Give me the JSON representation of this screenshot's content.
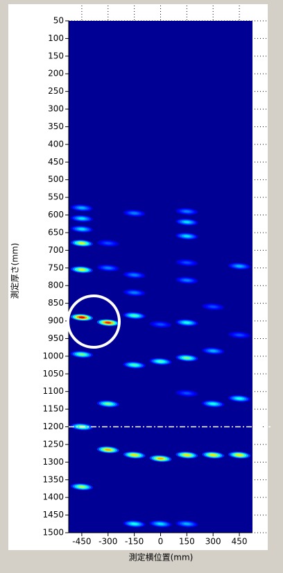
{
  "chart_data": {
    "type": "heatmap",
    "x_label": "測定横位置(mm)",
    "y_label": "測定厚さ(mm)",
    "xlim": [
      -525,
      525
    ],
    "ylim": [
      50,
      1500
    ],
    "y_reversed": true,
    "xticks": [
      -450,
      -300,
      -150,
      0,
      150,
      300,
      450
    ],
    "yticks": [
      50,
      100,
      150,
      200,
      250,
      300,
      350,
      400,
      450,
      500,
      550,
      600,
      650,
      700,
      750,
      800,
      850,
      900,
      950,
      1000,
      1050,
      1100,
      1150,
      1200,
      1250,
      1300,
      1350,
      1400,
      1450,
      1500
    ],
    "grid": true,
    "colormap": "jet",
    "reference_line": 1200,
    "x": [
      -450,
      -450,
      -450,
      -450,
      -450,
      -450,
      -450,
      -450,
      -450,
      -300,
      -300,
      -300,
      -300,
      -300,
      -150,
      -150,
      -150,
      -150,
      -150,
      -150,
      -150,
      0,
      0,
      0,
      0,
      150,
      150,
      150,
      150,
      150,
      150,
      150,
      150,
      150,
      150,
      300,
      300,
      300,
      300,
      450,
      450,
      450,
      450
    ],
    "y": [
      580,
      610,
      640,
      680,
      755,
      890,
      995,
      1200,
      1370,
      680,
      750,
      905,
      1135,
      1265,
      595,
      770,
      820,
      885,
      1025,
      1280,
      1475,
      910,
      1015,
      1290,
      1475,
      590,
      620,
      660,
      735,
      785,
      905,
      1005,
      1105,
      1280,
      1475,
      860,
      985,
      1135,
      1280,
      745,
      940,
      1120,
      1280
    ],
    "values": [
      0.25,
      0.3,
      0.3,
      0.55,
      0.55,
      0.85,
      0.45,
      0.5,
      0.5,
      0.15,
      0.2,
      0.8,
      0.45,
      0.65,
      0.2,
      0.2,
      0.2,
      0.4,
      0.4,
      0.6,
      0.35,
      0.15,
      0.4,
      0.65,
      0.3,
      0.2,
      0.3,
      0.3,
      0.15,
      0.2,
      0.35,
      0.45,
      0.15,
      0.6,
      0.25,
      0.15,
      0.25,
      0.35,
      0.6,
      0.25,
      0.15,
      0.35,
      0.6
    ]
  }
}
